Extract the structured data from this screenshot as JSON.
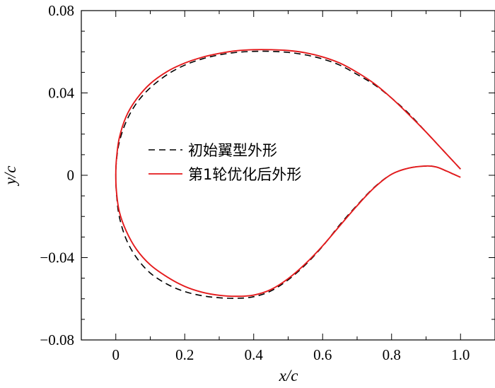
{
  "chart_data": {
    "type": "line",
    "title": "",
    "xlabel": "x/c",
    "ylabel": "y/c",
    "xlim": [
      -0.1,
      1.1
    ],
    "ylim": [
      -0.08,
      0.08
    ],
    "x_ticks": [
      0,
      0.2,
      0.4,
      0.6,
      0.8,
      1.0
    ],
    "x_tick_labels": [
      "0",
      "0.2",
      "0.4",
      "0.6",
      "0.8",
      "1.0"
    ],
    "y_ticks": [
      -0.08,
      -0.04,
      0,
      0.04,
      0.08
    ],
    "y_tick_labels": [
      "−0.08",
      "−0.04",
      "0",
      "0.04",
      "0.08"
    ],
    "grid": false,
    "legend_position": "center-left",
    "series": [
      {
        "name": "初始翼型外形",
        "color": "#000000",
        "style": "dashed",
        "x": [
          1.0,
          0.95,
          0.9,
          0.85,
          0.8,
          0.75,
          0.7,
          0.65,
          0.6,
          0.55,
          0.5,
          0.45,
          0.4,
          0.35,
          0.3,
          0.25,
          0.2,
          0.15,
          0.1,
          0.06,
          0.03,
          0.01,
          0.002,
          0.0,
          0.002,
          0.01,
          0.03,
          0.06,
          0.1,
          0.15,
          0.2,
          0.25,
          0.3,
          0.35,
          0.4,
          0.45,
          0.5,
          0.55,
          0.6,
          0.65,
          0.7,
          0.75,
          0.8,
          0.85,
          0.9,
          0.93,
          0.96,
          0.98,
          1.0
        ],
        "y": [
          0.003,
          0.012,
          0.021,
          0.03,
          0.0375,
          0.044,
          0.049,
          0.0535,
          0.0565,
          0.0585,
          0.0597,
          0.0602,
          0.0602,
          0.0597,
          0.0585,
          0.0565,
          0.0535,
          0.049,
          0.0425,
          0.035,
          0.026,
          0.016,
          0.007,
          0.0,
          -0.009,
          -0.02,
          -0.031,
          -0.04,
          -0.0475,
          -0.053,
          -0.0565,
          -0.0585,
          -0.0595,
          -0.0598,
          -0.059,
          -0.0562,
          -0.0508,
          -0.0435,
          -0.0345,
          -0.024,
          -0.0145,
          -0.0058,
          0.0005,
          0.0035,
          0.0045,
          0.004,
          0.002,
          0.0005,
          -0.001
        ]
      },
      {
        "name": "第1轮优化后外形",
        "color": "#e41a1c",
        "style": "solid",
        "x": [
          1.0,
          0.95,
          0.9,
          0.85,
          0.8,
          0.75,
          0.7,
          0.65,
          0.6,
          0.55,
          0.5,
          0.45,
          0.4,
          0.35,
          0.3,
          0.25,
          0.2,
          0.15,
          0.1,
          0.06,
          0.03,
          0.01,
          0.002,
          0.0,
          0.002,
          0.01,
          0.03,
          0.06,
          0.1,
          0.15,
          0.2,
          0.25,
          0.3,
          0.35,
          0.4,
          0.45,
          0.5,
          0.55,
          0.6,
          0.65,
          0.7,
          0.75,
          0.8,
          0.85,
          0.9,
          0.93,
          0.96,
          0.98,
          1.0
        ],
        "y": [
          0.003,
          0.012,
          0.021,
          0.0295,
          0.0375,
          0.0445,
          0.05,
          0.0545,
          0.0575,
          0.0595,
          0.0606,
          0.061,
          0.061,
          0.0605,
          0.0592,
          0.0573,
          0.0545,
          0.0505,
          0.0445,
          0.037,
          0.0285,
          0.018,
          0.008,
          0.0,
          -0.008,
          -0.0175,
          -0.027,
          -0.036,
          -0.0435,
          -0.0495,
          -0.054,
          -0.0568,
          -0.0583,
          -0.0588,
          -0.0582,
          -0.0555,
          -0.0502,
          -0.043,
          -0.0343,
          -0.0245,
          -0.0148,
          -0.006,
          0.0005,
          0.0035,
          0.0045,
          0.004,
          0.002,
          0.0005,
          -0.001
        ]
      }
    ]
  }
}
